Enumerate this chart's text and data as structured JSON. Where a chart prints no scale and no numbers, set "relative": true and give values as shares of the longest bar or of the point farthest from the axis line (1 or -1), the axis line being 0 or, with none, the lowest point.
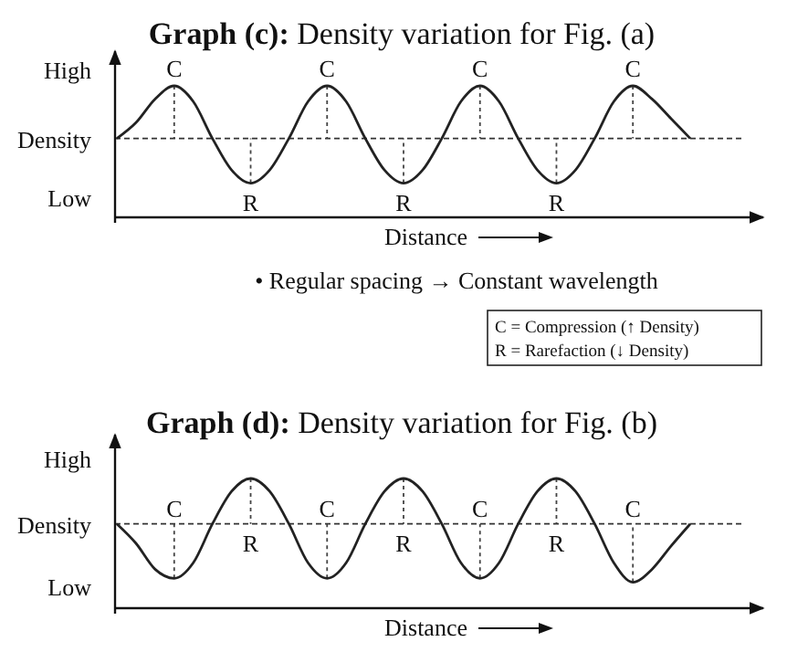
{
  "chart_data": [
    {
      "type": "line",
      "relative": true,
      "title": "Graph (c): Density variation for Fig. (a)",
      "xlabel": "Distance",
      "categories": [
        null,
        null,
        null,
        null,
        null,
        null,
        null,
        null,
        null,
        null,
        null,
        null,
        null,
        null,
        null,
        null,
        null,
        null,
        null,
        null,
        null,
        null,
        null,
        null,
        null,
        null,
        null,
        null,
        null,
        null,
        null
      ],
      "series": [
        {
          "color": "#222222",
          "values": [
            0.6,
            0.72,
            0.9,
            1,
            0.88,
            0.6,
            0.36,
            0.26,
            0.36,
            0.6,
            0.88,
            1,
            0.88,
            0.6,
            0.36,
            0.26,
            0.36,
            0.6,
            0.88,
            1,
            0.88,
            0.6,
            0.36,
            0.26,
            0.36,
            0.6,
            0.88,
            1,
            0.9,
            0.75,
            0.6
          ]
        }
      ],
      "ref_lines": [
        {
          "axis": "y",
          "value": 0.6,
          "label": "Density",
          "line_style": "dashed"
        }
      ],
      "annotations": [
        "High",
        "Low",
        "• Regular spacing → Constant wavelength",
        "C = Compression (↑ Density)",
        "R = Rarefaction (↓ Density)",
        "C",
        "R",
        "C",
        "R",
        "C",
        "R",
        "C"
      ]
    },
    {
      "type": "line",
      "relative": true,
      "title": "Graph (d): Density variation for Fig. (b)",
      "xlabel": "Distance",
      "categories": [
        null,
        null,
        null,
        null,
        null,
        null,
        null,
        null,
        null,
        null,
        null,
        null,
        null,
        null,
        null,
        null,
        null,
        null,
        null,
        null,
        null,
        null,
        null,
        null,
        null,
        null,
        null,
        null,
        null,
        null,
        null
      ],
      "series": [
        {
          "color": "#222222",
          "values": [
            0.65,
            0.5,
            0.3,
            0.23,
            0.35,
            0.65,
            0.9,
            1,
            0.9,
            0.65,
            0.35,
            0.23,
            0.35,
            0.65,
            0.9,
            1,
            0.9,
            0.65,
            0.35,
            0.23,
            0.35,
            0.65,
            0.9,
            1,
            0.9,
            0.65,
            0.35,
            0.2,
            0.3,
            0.48,
            0.65
          ]
        }
      ],
      "ref_lines": [
        {
          "axis": "y",
          "value": 0.65,
          "label": "Density",
          "line_style": "dashed"
        }
      ],
      "annotations": [
        "High",
        "Low",
        "C",
        "R",
        "C",
        "R",
        "C",
        "R",
        "C"
      ]
    }
  ]
}
